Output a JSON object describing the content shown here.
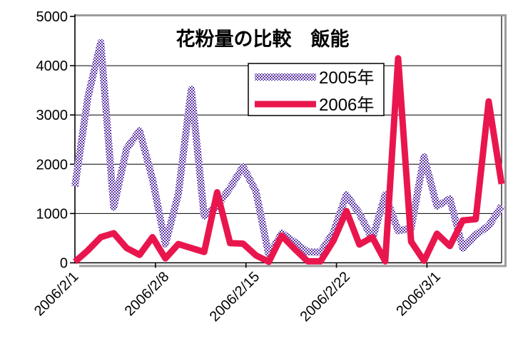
{
  "title": "花粉量の比較　飯能",
  "legend": {
    "position": "top-right-inside",
    "items": [
      {
        "label": "2005年",
        "line_style": "checker-pattern"
      },
      {
        "label": "2006年",
        "line_style": "solid"
      }
    ]
  },
  "axis": {
    "y_labels": [
      "0",
      "1000",
      "2000",
      "3000",
      "4000",
      "5000"
    ],
    "x_labels": [
      "2006/2/1",
      "2006/2/8",
      "2006/2/15",
      "2006/2/22",
      "2006/3/1"
    ]
  },
  "colors": {
    "series_2005": "#5b35a8",
    "series_2006": "#e9164e",
    "gridline": "#000000",
    "axis": "#000000",
    "frame_shadow": "#9c9c9c",
    "legend_bg": "#ffffff",
    "legend_border": "#000000",
    "background": "#ffffff"
  },
  "chart_data": {
    "type": "line",
    "title": "花粉量の比較　飯能",
    "xlabel": "",
    "ylabel": "",
    "ylim": [
      0,
      5000
    ],
    "y_ticks": [
      0,
      1000,
      2000,
      3000,
      4000,
      5000
    ],
    "grid": true,
    "legend_position": "top-right-inside",
    "x": [
      "2006/2/1",
      "2006/2/2",
      "2006/2/3",
      "2006/2/4",
      "2006/2/5",
      "2006/2/6",
      "2006/2/7",
      "2006/2/8",
      "2006/2/9",
      "2006/2/10",
      "2006/2/11",
      "2006/2/12",
      "2006/2/13",
      "2006/2/14",
      "2006/2/15",
      "2006/2/16",
      "2006/2/17",
      "2006/2/18",
      "2006/2/19",
      "2006/2/20",
      "2006/2/21",
      "2006/2/22",
      "2006/2/23",
      "2006/2/24",
      "2006/2/25",
      "2006/2/26",
      "2006/2/27",
      "2006/2/28",
      "2006/3/1",
      "2006/3/2",
      "2006/3/3",
      "2006/3/4",
      "2006/3/5",
      "2006/3/6"
    ],
    "x_tick_indices": [
      0,
      7,
      14,
      21,
      28
    ],
    "x_tick_labels": [
      "2006/2/1",
      "2006/2/8",
      "2006/2/15",
      "2006/2/22",
      "2006/3/1"
    ],
    "series": [
      {
        "name": "2005年",
        "color": "#5b35a8",
        "style": "checker-pattern",
        "values": [
          1550,
          3350,
          4470,
          1130,
          2320,
          2680,
          1700,
          380,
          1400,
          3520,
          950,
          1150,
          1520,
          1950,
          1450,
          150,
          600,
          420,
          220,
          215,
          620,
          1380,
          1000,
          480,
          1380,
          650,
          700,
          2150,
          1150,
          1300,
          300,
          570,
          750,
          1150
        ]
      },
      {
        "name": "2006年",
        "color": "#e9164e",
        "style": "solid",
        "values": [
          20,
          250,
          520,
          600,
          300,
          160,
          520,
          90,
          380,
          300,
          220,
          1430,
          400,
          390,
          150,
          20,
          550,
          280,
          30,
          30,
          450,
          1050,
          370,
          520,
          30,
          4150,
          430,
          40,
          590,
          340,
          860,
          885,
          3275,
          1600
        ]
      }
    ]
  }
}
